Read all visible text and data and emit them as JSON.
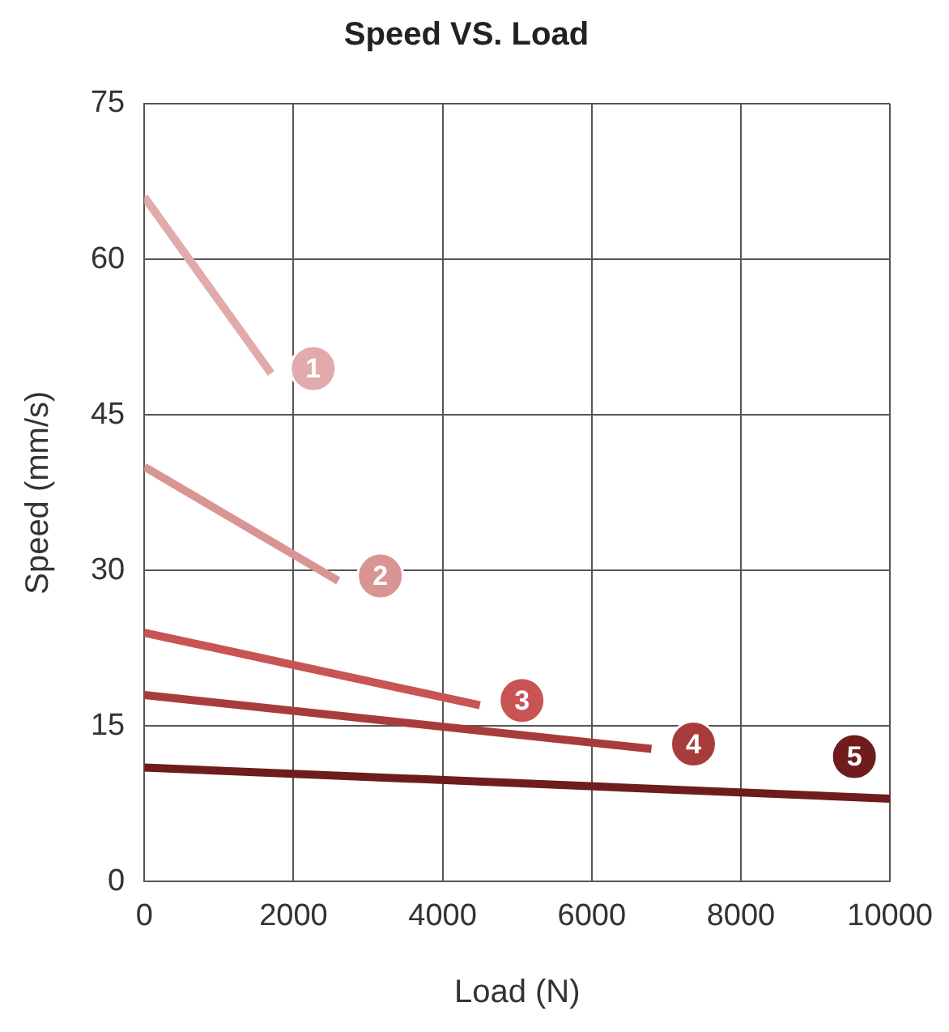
{
  "chart_data": {
    "type": "line",
    "title": "Speed VS. Load",
    "xlabel": "Load (N)",
    "ylabel": "Speed (mm/s)",
    "xlim": [
      0,
      10000
    ],
    "xticks": [
      0,
      2000,
      4000,
      6000,
      8000,
      10000
    ],
    "ylim": [
      0,
      75
    ],
    "yticks": [
      0,
      15,
      30,
      45,
      60,
      75
    ],
    "grid": true,
    "legend": false,
    "marker": "none",
    "line_style": "solid",
    "series": [
      {
        "name": "1",
        "color": "#e2aaaa",
        "x": [
          0,
          1700
        ],
        "values": [
          66,
          49
        ]
      },
      {
        "name": "2",
        "color": "#d99494",
        "x": [
          0,
          2600
        ],
        "values": [
          40,
          29
        ]
      },
      {
        "name": "3",
        "color": "#c85454",
        "x": [
          0,
          4500
        ],
        "values": [
          24,
          17
        ]
      },
      {
        "name": "4",
        "color": "#a83c3c",
        "x": [
          0,
          6800
        ],
        "values": [
          18,
          12.8
        ]
      },
      {
        "name": "5",
        "color": "#6e1c1c",
        "x": [
          0,
          10000
        ],
        "values": [
          11,
          8
        ]
      }
    ]
  }
}
